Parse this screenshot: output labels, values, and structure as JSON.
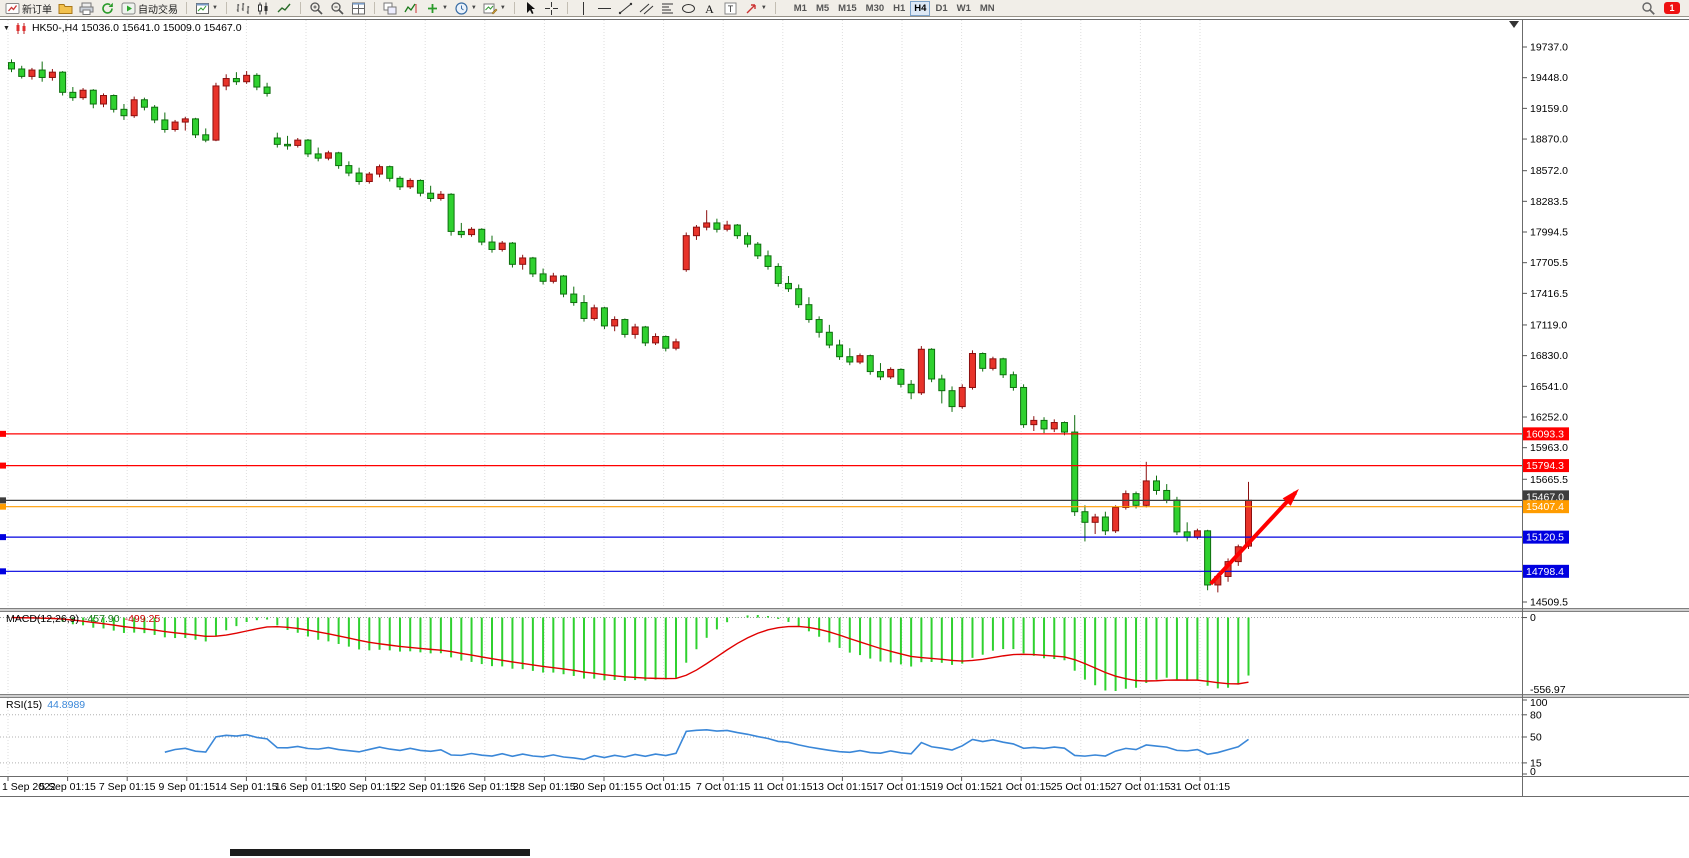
{
  "icons": {
    "caret": "▼"
  },
  "toolbar": {
    "new_order_label": "新订单",
    "autotrading_label": "自动交易",
    "timeframes": [
      "M1",
      "M5",
      "M15",
      "M30",
      "H1",
      "H4",
      "D1",
      "W1",
      "MN"
    ],
    "active_timeframe": "H4",
    "badge_count": "1"
  },
  "chart_data": {
    "type": "candlestick",
    "symbol": "HK50-",
    "timeframe": "H4",
    "title": "HK50-,H4  15036.0 15641.0 15009.0 15467.0",
    "current": {
      "open": 15036.0,
      "high": 15641.0,
      "low": 15009.0,
      "close": 15467.0
    },
    "bull_color": "#e8332a",
    "bear_color": "#2fd12f",
    "price_axis": {
      "top_value": 19737.0,
      "bottom_value": 14509.5,
      "labels": [
        "19737.0",
        "19448.0",
        "19159.0",
        "18870.0",
        "18572.0",
        "18283.5",
        "17994.5",
        "17705.5",
        "17416.5",
        "17119.0",
        "16830.0",
        "16541.0",
        "16252.0",
        "15963.0",
        "15665.5",
        "14509.5"
      ]
    },
    "time_axis": [
      "1 Sep 2022",
      "5 Sep 01:15",
      "7 Sep 01:15",
      "9 Sep 01:15",
      "14 Sep 01:15",
      "16 Sep 01:15",
      "20 Sep 01:15",
      "22 Sep 01:15",
      "26 Sep 01:15",
      "28 Sep 01:15",
      "30 Sep 01:15",
      "5 Oct 01:15",
      "7 Oct 01:15",
      "11 Oct 01:15",
      "13 Oct 01:15",
      "17 Oct 01:15",
      "19 Oct 01:15",
      "21 Oct 01:15",
      "25 Oct 01:15",
      "27 Oct 01:15",
      "31 Oct 01:15"
    ],
    "hlines": [
      {
        "price": 16093.3,
        "label": "16093.3",
        "color": "#ff0000"
      },
      {
        "price": 15794.3,
        "label": "15794.3",
        "color": "#ff0000"
      },
      {
        "price": 15467.0,
        "label": "15467.0",
        "color": "#3d3d3d"
      },
      {
        "price": 15407.4,
        "label": "15407.4",
        "color": "#ff9c00"
      },
      {
        "price": 15120.5,
        "label": "15120.5",
        "color": "#0000e0"
      },
      {
        "price": 14798.4,
        "label": "14798.4",
        "color": "#0000e0"
      }
    ],
    "trend_arrow": {
      "from_index": 117.3,
      "from_price": 14680,
      "to_index": 125.6,
      "to_price": 15540,
      "color": "#ff0000"
    },
    "macd": {
      "label": "MACD(12,26,9)",
      "main_value": "-457.90",
      "signal_value": "-499.25",
      "params": [
        12,
        26,
        9
      ],
      "axis_labels": [
        "0",
        "-556.97"
      ],
      "histogram_color": "#2fd12f",
      "signal_color": "#e00000"
    },
    "rsi": {
      "label": "RSI(15)",
      "value": "44.8989",
      "period": 15,
      "levels": [
        80,
        50,
        15
      ],
      "axis_labels": [
        "100",
        "80",
        "50",
        "15",
        "0"
      ],
      "line_color": "#3a87d8"
    },
    "candles": [
      [
        19590,
        19620,
        19500,
        19530
      ],
      [
        19530,
        19560,
        19440,
        19460
      ],
      [
        19460,
        19540,
        19430,
        19520
      ],
      [
        19520,
        19600,
        19410,
        19450
      ],
      [
        19450,
        19530,
        19420,
        19500
      ],
      [
        19500,
        19510,
        19280,
        19310
      ],
      [
        19310,
        19360,
        19230,
        19260
      ],
      [
        19260,
        19350,
        19240,
        19330
      ],
      [
        19330,
        19340,
        19160,
        19200
      ],
      [
        19200,
        19300,
        19170,
        19280
      ],
      [
        19280,
        19290,
        19120,
        19150
      ],
      [
        19150,
        19200,
        19050,
        19090
      ],
      [
        19090,
        19270,
        19070,
        19240
      ],
      [
        19240,
        19260,
        19140,
        19170
      ],
      [
        19170,
        19190,
        19020,
        19050
      ],
      [
        19050,
        19120,
        18930,
        18960
      ],
      [
        18960,
        19050,
        18940,
        19030
      ],
      [
        19030,
        19080,
        18950,
        19060
      ],
      [
        19060,
        19070,
        18880,
        18910
      ],
      [
        18910,
        18970,
        18840,
        18860
      ],
      [
        18860,
        19400,
        18850,
        19370
      ],
      [
        19370,
        19480,
        19330,
        19440
      ],
      [
        19440,
        19500,
        19380,
        19410
      ],
      [
        19410,
        19510,
        19390,
        19470
      ],
      [
        19470,
        19490,
        19330,
        19360
      ],
      [
        19360,
        19400,
        19270,
        19300
      ],
      [
        18880,
        18930,
        18790,
        18820
      ],
      [
        18820,
        18900,
        18770,
        18810
      ],
      [
        18810,
        18880,
        18790,
        18860
      ],
      [
        18860,
        18870,
        18700,
        18730
      ],
      [
        18730,
        18790,
        18660,
        18690
      ],
      [
        18690,
        18760,
        18670,
        18740
      ],
      [
        18740,
        18750,
        18590,
        18620
      ],
      [
        18620,
        18660,
        18520,
        18550
      ],
      [
        18550,
        18600,
        18440,
        18470
      ],
      [
        18470,
        18560,
        18450,
        18540
      ],
      [
        18540,
        18630,
        18510,
        18610
      ],
      [
        18610,
        18620,
        18470,
        18500
      ],
      [
        18500,
        18520,
        18390,
        18420
      ],
      [
        18420,
        18500,
        18400,
        18480
      ],
      [
        18480,
        18490,
        18330,
        18360
      ],
      [
        18360,
        18430,
        18280,
        18310
      ],
      [
        18310,
        18380,
        18290,
        18350
      ],
      [
        18350,
        18360,
        17960,
        18000
      ],
      [
        18000,
        18080,
        17940,
        17970
      ],
      [
        17970,
        18040,
        17950,
        18020
      ],
      [
        18020,
        18030,
        17870,
        17900
      ],
      [
        17900,
        17960,
        17800,
        17830
      ],
      [
        17830,
        17910,
        17810,
        17890
      ],
      [
        17890,
        17900,
        17660,
        17690
      ],
      [
        17690,
        17780,
        17640,
        17750
      ],
      [
        17750,
        17760,
        17570,
        17600
      ],
      [
        17600,
        17650,
        17500,
        17530
      ],
      [
        17530,
        17610,
        17510,
        17580
      ],
      [
        17580,
        17590,
        17380,
        17410
      ],
      [
        17410,
        17480,
        17300,
        17330
      ],
      [
        17330,
        17400,
        17150,
        17180
      ],
      [
        17180,
        17310,
        17160,
        17280
      ],
      [
        17280,
        17290,
        17080,
        17110
      ],
      [
        17110,
        17200,
        17060,
        17170
      ],
      [
        17170,
        17180,
        17000,
        17030
      ],
      [
        17030,
        17130,
        16990,
        17100
      ],
      [
        17100,
        17110,
        16920,
        16950
      ],
      [
        16950,
        17040,
        16930,
        17010
      ],
      [
        17010,
        17020,
        16870,
        16900
      ],
      [
        16900,
        16990,
        16880,
        16960
      ],
      [
        17640,
        17990,
        17620,
        17960
      ],
      [
        17960,
        18060,
        17920,
        18040
      ],
      [
        18040,
        18200,
        18010,
        18080
      ],
      [
        18080,
        18120,
        17990,
        18020
      ],
      [
        18020,
        18100,
        18000,
        18060
      ],
      [
        18060,
        18070,
        17930,
        17960
      ],
      [
        17960,
        17990,
        17850,
        17880
      ],
      [
        17880,
        17900,
        17740,
        17770
      ],
      [
        17770,
        17820,
        17640,
        17670
      ],
      [
        17670,
        17700,
        17480,
        17510
      ],
      [
        17510,
        17580,
        17430,
        17460
      ],
      [
        17460,
        17500,
        17280,
        17310
      ],
      [
        17310,
        17380,
        17140,
        17170
      ],
      [
        17170,
        17200,
        17000,
        17050
      ],
      [
        17050,
        17120,
        16900,
        16930
      ],
      [
        16930,
        16980,
        16790,
        16820
      ],
      [
        16820,
        16900,
        16740,
        16770
      ],
      [
        16770,
        16850,
        16750,
        16830
      ],
      [
        16830,
        16840,
        16650,
        16680
      ],
      [
        16680,
        16760,
        16600,
        16630
      ],
      [
        16630,
        16720,
        16610,
        16700
      ],
      [
        16700,
        16710,
        16530,
        16560
      ],
      [
        16560,
        16600,
        16420,
        16480
      ],
      [
        16480,
        16920,
        16460,
        16890
      ],
      [
        16890,
        16900,
        16580,
        16610
      ],
      [
        16610,
        16650,
        16380,
        16500
      ],
      [
        16500,
        16540,
        16300,
        16350
      ],
      [
        16350,
        16560,
        16330,
        16530
      ],
      [
        16530,
        16880,
        16510,
        16850
      ],
      [
        16850,
        16860,
        16680,
        16710
      ],
      [
        16710,
        16820,
        16690,
        16800
      ],
      [
        16800,
        16810,
        16620,
        16650
      ],
      [
        16650,
        16680,
        16500,
        16530
      ],
      [
        16530,
        16560,
        16150,
        16180
      ],
      [
        16180,
        16260,
        16120,
        16220
      ],
      [
        16220,
        16250,
        16100,
        16140
      ],
      [
        16140,
        16230,
        16110,
        16200
      ],
      [
        16200,
        16210,
        16080,
        16110
      ],
      [
        16110,
        16270,
        15320,
        15360
      ],
      [
        15360,
        15420,
        15080,
        15260
      ],
      [
        15260,
        15340,
        15150,
        15310
      ],
      [
        15310,
        15360,
        15140,
        15180
      ],
      [
        15180,
        15420,
        15160,
        15400
      ],
      [
        15400,
        15560,
        15380,
        15530
      ],
      [
        15530,
        15550,
        15390,
        15420
      ],
      [
        15420,
        15830,
        15400,
        15650
      ],
      [
        15650,
        15700,
        15520,
        15560
      ],
      [
        15560,
        15620,
        15440,
        15470
      ],
      [
        15470,
        15500,
        15140,
        15170
      ],
      [
        15170,
        15260,
        15080,
        15120
      ],
      [
        15120,
        15200,
        15100,
        15180
      ],
      [
        15180,
        15190,
        14620,
        14670
      ],
      [
        14670,
        14780,
        14600,
        14750
      ],
      [
        14750,
        14920,
        14700,
        14890
      ],
      [
        14890,
        15050,
        14850,
        15030
      ],
      [
        15036,
        15641,
        15009,
        15467
      ]
    ]
  }
}
